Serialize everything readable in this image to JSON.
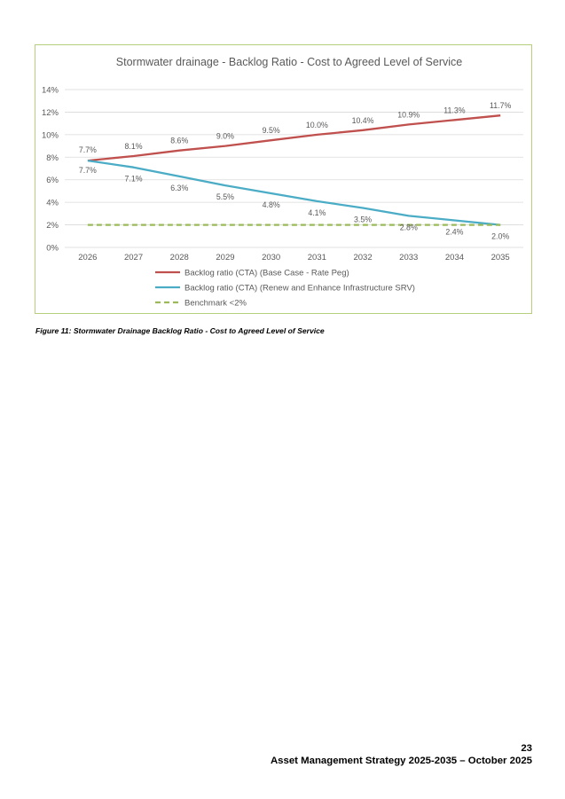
{
  "chart_data": {
    "type": "line",
    "title": "Stormwater drainage - Backlog Ratio - Cost to Agreed Level of Service",
    "categories": [
      "2026",
      "2027",
      "2028",
      "2029",
      "2030",
      "2031",
      "2032",
      "2033",
      "2034",
      "2035"
    ],
    "ylim": [
      0,
      14
    ],
    "yticks": [
      0,
      2,
      4,
      6,
      8,
      10,
      12,
      14
    ],
    "ytick_labels": [
      "0%",
      "2%",
      "4%",
      "6%",
      "8%",
      "10%",
      "12%",
      "14%"
    ],
    "grid": true,
    "legend_position": "bottom",
    "series": [
      {
        "name": "Backlog ratio (CTA) (Base Case - Rate Peg)",
        "color": "#c0504d",
        "style": "solid",
        "values": [
          7.7,
          8.1,
          8.6,
          9.0,
          9.5,
          10.0,
          10.4,
          10.9,
          11.3,
          11.7
        ],
        "labels": [
          "7.7%",
          "8.1%",
          "8.6%",
          "9.0%",
          "9.5%",
          "10.0%",
          "10.4%",
          "10.9%",
          "11.3%",
          "11.7%"
        ]
      },
      {
        "name": "Backlog ratio (CTA) (Renew and Enhance Infrastructure SRV)",
        "color": "#4bacc6",
        "style": "solid",
        "values": [
          7.7,
          7.1,
          6.3,
          5.5,
          4.8,
          4.1,
          3.5,
          2.8,
          2.4,
          2.0
        ],
        "labels": [
          "7.7%",
          "7.1%",
          "6.3%",
          "5.5%",
          "4.8%",
          "4.1%",
          "3.5%",
          "2.8%",
          "2.4%",
          "2.0%"
        ]
      },
      {
        "name": "Benchmark <2%",
        "color": "#9bbb59",
        "style": "dashed",
        "values": [
          2,
          2,
          2,
          2,
          2,
          2,
          2,
          2,
          2,
          2
        ],
        "labels": []
      }
    ]
  },
  "caption": "Figure 11: Stormwater Drainage Backlog Ratio - Cost to Agreed Level of Service",
  "footer": {
    "page_number": "23",
    "document_title": "Asset Management Strategy 2025-2035 – October 2025"
  }
}
